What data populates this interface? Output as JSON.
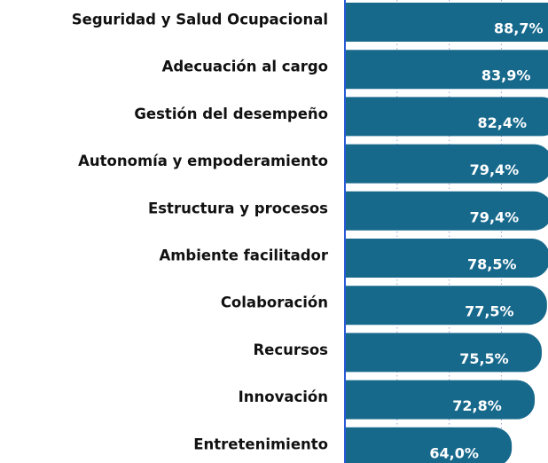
{
  "chart_data": {
    "type": "barh",
    "categories": [
      "Seguridad y Salud Ocupacional",
      "Adecuación al cargo",
      "Gestión del desempeño",
      "Autonomía y empoderamiento",
      "Estructura y procesos",
      "Ambiente facilitador",
      "Colaboración",
      "Recursos",
      "Innovación",
      "Entretenimiento"
    ],
    "values": [
      88.7,
      83.9,
      82.4,
      79.4,
      79.4,
      78.5,
      77.5,
      75.5,
      72.8,
      64.0
    ],
    "value_labels": [
      "88,7%",
      "83,9%",
      "82,4%",
      "79,4%",
      "79,4%",
      "78,5%",
      "77,5%",
      "75,5%",
      "72,8%",
      "64,0%"
    ],
    "color": "#17698c",
    "xlim": [
      0,
      100
    ],
    "xticks": [
      20,
      40,
      60,
      80
    ],
    "grid": true
  }
}
